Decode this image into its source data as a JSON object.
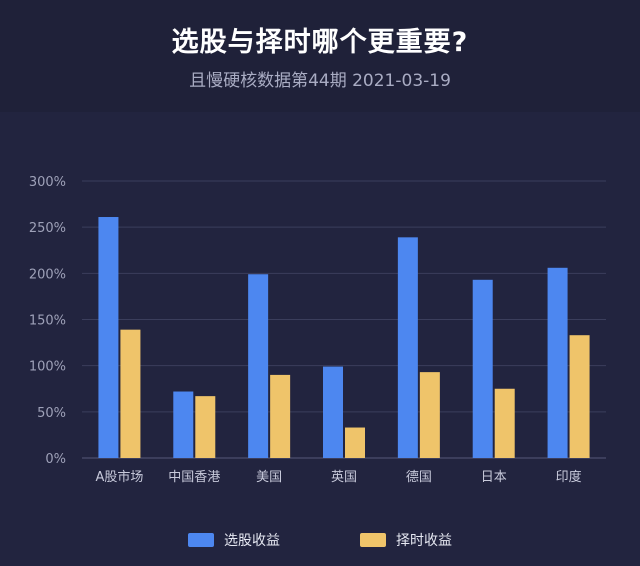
{
  "header": {
    "title": "选股与择时哪个更重要?",
    "subtitle": "且慢硬核数据第44期 2021-03-19"
  },
  "colors": {
    "stock_picking": "#4d87f0",
    "timing": "#efc46a",
    "grid": "#3b3e5c",
    "axis_text": "#9ea1b8"
  },
  "chart_data": {
    "type": "bar",
    "title": "选股与择时哪个更重要?",
    "subtitle": "且慢硬核数据第44期 2021-03-19",
    "categories": [
      "A股市场",
      "中国香港",
      "美国",
      "英国",
      "德国",
      "日本",
      "印度"
    ],
    "series": [
      {
        "name": "选股收益",
        "values": [
          261,
          72,
          199,
          99,
          239,
          193,
          206
        ]
      },
      {
        "name": "择时收益",
        "values": [
          139,
          67,
          90,
          33,
          93,
          75,
          133
        ]
      }
    ],
    "yticks": [
      "0%",
      "50%",
      "100%",
      "150%",
      "200%",
      "250%",
      "300%"
    ],
    "ylim": [
      0,
      300
    ],
    "grid": true,
    "legend": "bottom"
  }
}
